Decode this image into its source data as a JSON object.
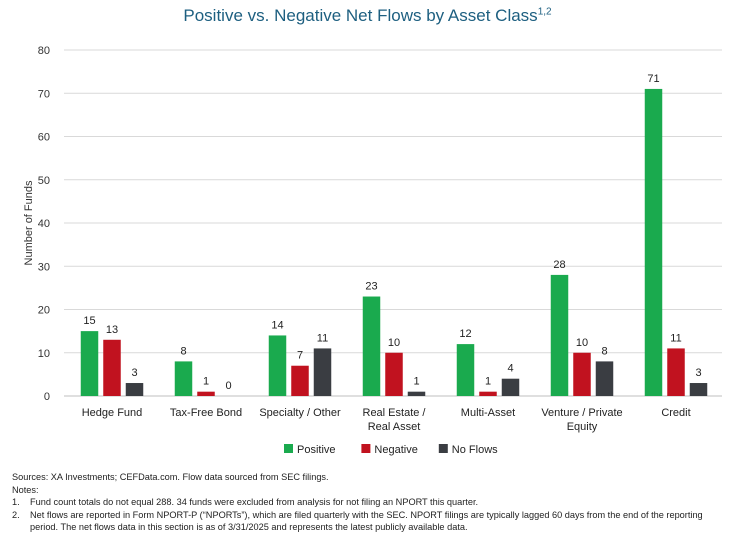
{
  "title": "Positive vs. Negative Net Flows by Asset Class",
  "title_superscript": "1,2",
  "colors": {
    "positive": "#1aaa4e",
    "negative": "#c1121f",
    "no_flows": "#3a3d42",
    "title": "#1d5f80",
    "grid": "#d9d9d9"
  },
  "chart_data": {
    "type": "bar",
    "title": "Positive vs. Negative Net Flows by Asset Class",
    "xlabel": "",
    "ylabel": "Number of Funds",
    "ylim": [
      0,
      80
    ],
    "yticks": [
      0,
      10,
      20,
      30,
      40,
      50,
      60,
      70,
      80
    ],
    "grid": true,
    "legend_position": "bottom",
    "categories": [
      [
        "Hedge Fund"
      ],
      [
        "Tax-Free Bond"
      ],
      [
        "Specialty / Other"
      ],
      [
        "Real Estate /",
        "Real Asset"
      ],
      [
        "Multi-Asset"
      ],
      [
        "Venture / Private",
        "Equity"
      ],
      [
        "Credit"
      ]
    ],
    "series": [
      {
        "name": "Positive",
        "color": "#1aaa4e",
        "values": [
          15,
          8,
          14,
          23,
          12,
          28,
          71
        ]
      },
      {
        "name": "Negative",
        "color": "#c1121f",
        "values": [
          13,
          1,
          7,
          10,
          1,
          10,
          11
        ]
      },
      {
        "name": "No Flows",
        "color": "#3a3d42",
        "values": [
          3,
          0,
          11,
          1,
          4,
          8,
          3
        ]
      }
    ]
  },
  "footer": {
    "sources": "Sources: XA Investments; CEFData.com. Flow data sourced from SEC filings.",
    "notes_label": "Notes:",
    "notes": [
      {
        "num": "1.",
        "text": "Fund count totals do not equal 288. 34 funds were excluded from analysis for not filing an NPORT this quarter."
      },
      {
        "num": "2.",
        "text": "Net flows are reported in Form NPORT-P (“NPORTs”), which are filed quarterly with the SEC. NPORT filings are typically lagged 60 days from the end of the reporting period. The net flows data in this section is as of 3/31/2025 and represents the latest publicly available data."
      }
    ]
  }
}
